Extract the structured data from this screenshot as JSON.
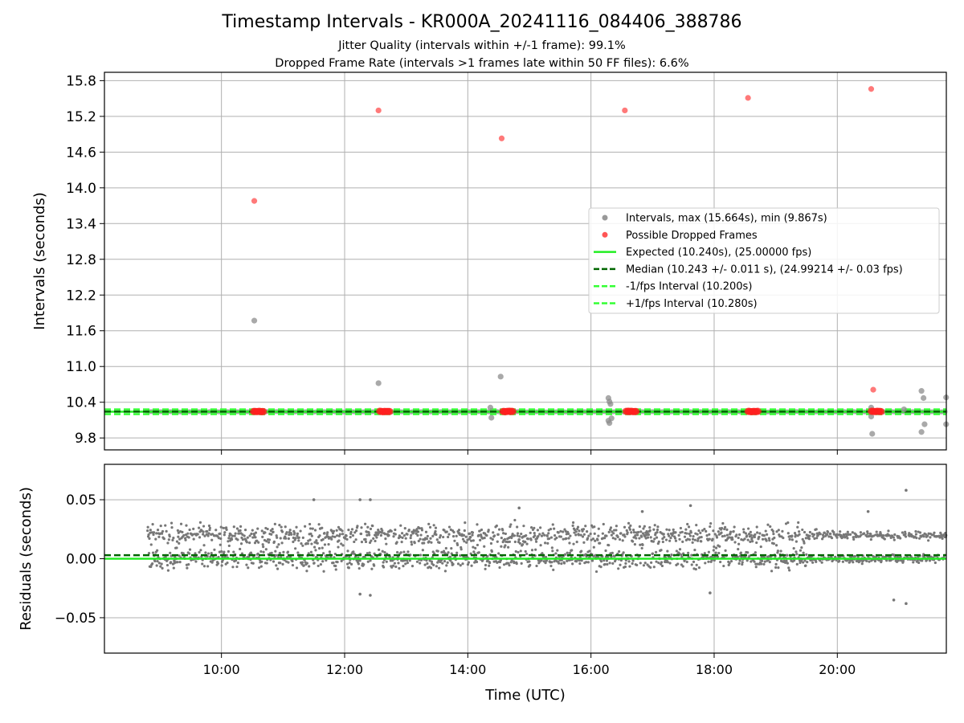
{
  "figure": {
    "title": "Timestamp Intervals - KR000A_20241116_084406_388786",
    "subtitle_lines": [
      "Jitter Quality (intervals within +/-1 frame): 99.1%",
      "Dropped Frame Rate (intervals >1 frames late within 50 FF files): 6.6%"
    ]
  },
  "chart_data": [
    {
      "type": "scatter",
      "panel": "top",
      "ylabel": "Intervals (seconds)",
      "xlabel": "",
      "ylim": [
        9.6,
        15.94
      ],
      "yticks": [
        "9.8",
        "10.4",
        "11.0",
        "11.6",
        "12.2",
        "12.8",
        "13.4",
        "14.0",
        "14.6",
        "15.2",
        "15.8"
      ],
      "xlim_hours": [
        8.1,
        21.77
      ],
      "xticks": [
        "10:00",
        "12:00",
        "14:00",
        "16:00",
        "18:00",
        "20:00"
      ],
      "grid": true,
      "legend_position": "center-right",
      "colors": {
        "intervals": "#8c8c8c",
        "dropped": "#ff2020",
        "expected": "#22ee22",
        "median": "#006600",
        "bounds": "#33ff33",
        "residuals": "#777777"
      },
      "legend": [
        {
          "key": "intervals",
          "label": "Intervals, max (15.664s), min (9.867s)",
          "marker": "dot",
          "color": "#999999"
        },
        {
          "key": "dropped",
          "label": "Possible Dropped Frames",
          "marker": "dot",
          "color": "#ff5555"
        },
        {
          "key": "expected",
          "label": "Expected (10.240s), (25.00000 fps)",
          "marker": "solid",
          "color": "#22ee22"
        },
        {
          "key": "median",
          "label": "Median (10.243 +/- 0.011 s), (24.99214 +/- 0.03 fps)",
          "marker": "dashed",
          "color": "#006600"
        },
        {
          "key": "lower",
          "label": "-1/fps Interval (10.200s)",
          "marker": "dashed",
          "color": "#33ff33"
        },
        {
          "key": "upper",
          "label": "+1/fps Interval (10.280s)",
          "marker": "dashed",
          "color": "#33ff33"
        }
      ],
      "reference_lines": {
        "expected": 10.24,
        "median": 10.243,
        "lower": 10.2,
        "upper": 10.28
      },
      "series": [
        {
          "name": "Intervals",
          "points": [
            {
              "x": "10:32",
              "y": 11.77
            },
            {
              "x": "12:33",
              "y": 10.72
            },
            {
              "x": "14:22",
              "y": 10.31
            },
            {
              "x": "14:23",
              "y": 10.14
            },
            {
              "x": "14:32",
              "y": 10.83
            },
            {
              "x": "16:17",
              "y": 10.47
            },
            {
              "x": "16:18",
              "y": 10.41
            },
            {
              "x": "16:19",
              "y": 10.37
            },
            {
              "x": "16:17",
              "y": 10.09
            },
            {
              "x": "16:18",
              "y": 10.05
            },
            {
              "x": "16:20",
              "y": 10.13
            },
            {
              "x": "20:33",
              "y": 10.31
            },
            {
              "x": "20:33",
              "y": 10.16
            },
            {
              "x": "20:34",
              "y": 9.87
            },
            {
              "x": "21:22",
              "y": 10.59
            },
            {
              "x": "21:22",
              "y": 9.9
            },
            {
              "x": "21:24",
              "y": 10.47
            },
            {
              "x": "21:25",
              "y": 10.03
            },
            {
              "x": "21:46",
              "y": 10.48
            },
            {
              "x": "21:46",
              "y": 10.03
            },
            {
              "x": "21:05",
              "y": 10.28
            }
          ]
        },
        {
          "name": "Possible Dropped Frames",
          "points": [
            {
              "x": "10:32",
              "y": 13.78
            },
            {
              "x": "12:33",
              "y": 15.3
            },
            {
              "x": "14:33",
              "y": 14.83
            },
            {
              "x": "16:33",
              "y": 15.3
            },
            {
              "x": "18:33",
              "y": 15.51
            },
            {
              "x": "20:33",
              "y": 15.66
            },
            {
              "x": "20:35",
              "y": 10.61
            }
          ]
        }
      ],
      "dropped_clusters_hours": [
        10.6,
        12.65,
        14.65,
        16.65,
        18.63,
        20.63
      ]
    },
    {
      "type": "scatter",
      "panel": "bottom",
      "ylabel": "Residuals (seconds)",
      "xlabel": "Time (UTC)",
      "ylim": [
        -0.08,
        0.08
      ],
      "yticks": [
        "−0.05",
        "0.00",
        "0.05"
      ],
      "xlim_hours": [
        8.1,
        21.77
      ],
      "xticks": [
        "10:00",
        "12:00",
        "14:00",
        "16:00",
        "18:00",
        "20:00"
      ],
      "grid": true,
      "reference_lines": {
        "expected": 0.0,
        "median": 0.003
      },
      "series": [
        {
          "name": "Residuals",
          "band_upper": 0.02,
          "band_lower": 0.0,
          "range_hours": [
            8.8,
            21.77
          ],
          "outliers": [
            {
              "x": "11:30",
              "y": 0.05
            },
            {
              "x": "12:15",
              "y": 0.05
            },
            {
              "x": "12:25",
              "y": 0.05
            },
            {
              "x": "14:50",
              "y": 0.043
            },
            {
              "x": "17:37",
              "y": 0.045
            },
            {
              "x": "21:07",
              "y": 0.058
            },
            {
              "x": "21:07",
              "y": -0.038
            },
            {
              "x": "12:15",
              "y": -0.03
            },
            {
              "x": "12:25",
              "y": -0.031
            },
            {
              "x": "17:56",
              "y": -0.029
            },
            {
              "x": "20:55",
              "y": -0.035
            },
            {
              "x": "20:30",
              "y": 0.04
            },
            {
              "x": "16:50",
              "y": 0.04
            }
          ]
        }
      ]
    }
  ]
}
